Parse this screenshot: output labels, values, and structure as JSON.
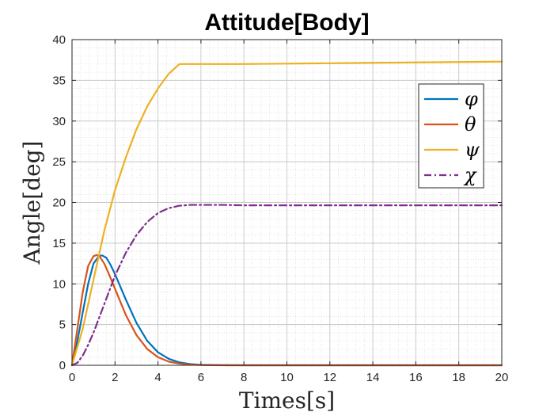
{
  "chart_data": {
    "type": "line",
    "title": "Attitude[Body]",
    "xlabel": "Times[s]",
    "ylabel": "Angle[deg]",
    "xlim": [
      0,
      20
    ],
    "ylim": [
      0,
      40
    ],
    "xticks": [
      0,
      2,
      4,
      6,
      8,
      10,
      12,
      14,
      16,
      18,
      20
    ],
    "yticks": [
      0,
      5,
      10,
      15,
      20,
      25,
      30,
      35,
      40
    ],
    "grid": true,
    "minor_grid": true,
    "legend_position": "top-right",
    "series": [
      {
        "name": "φ",
        "color": "#0072BD",
        "style": "solid",
        "x": [
          0,
          0.25,
          0.5,
          0.75,
          1.0,
          1.25,
          1.4,
          1.6,
          1.8,
          2.0,
          2.5,
          3.0,
          3.5,
          4.0,
          4.5,
          5.0,
          5.5,
          6.0,
          7.0,
          8.0,
          10.0,
          15.0,
          20.0
        ],
        "y": [
          0,
          3.0,
          6.5,
          10.0,
          12.5,
          13.4,
          13.5,
          13.2,
          12.3,
          11.2,
          8.1,
          5.2,
          3.0,
          1.6,
          0.8,
          0.35,
          0.15,
          0.05,
          0.01,
          0,
          0,
          0,
          0
        ]
      },
      {
        "name": "θ",
        "color": "#D95319",
        "style": "solid",
        "x": [
          0,
          0.25,
          0.5,
          0.75,
          1.0,
          1.15,
          1.3,
          1.5,
          1.75,
          2.0,
          2.5,
          3.0,
          3.5,
          4.0,
          4.5,
          5.0,
          5.5,
          6.0,
          7.0,
          8.0,
          10.0,
          15.0,
          20.0
        ],
        "y": [
          0,
          4.5,
          9.0,
          12.2,
          13.4,
          13.55,
          13.3,
          12.5,
          11.0,
          9.4,
          6.2,
          3.7,
          2.0,
          1.0,
          0.45,
          0.2,
          0.08,
          0.03,
          0,
          0,
          0,
          0,
          0
        ]
      },
      {
        "name": "ψ",
        "color": "#EDB120",
        "style": "solid",
        "x": [
          0,
          0.5,
          1.0,
          1.5,
          2.0,
          2.5,
          3.0,
          3.5,
          4.0,
          4.5,
          5.0,
          6.0,
          8.0,
          10.0,
          12.0,
          14.0,
          16.0,
          18.0,
          20.0
        ],
        "y": [
          0,
          4.5,
          10.5,
          16.5,
          21.5,
          25.5,
          29.0,
          31.8,
          34.0,
          35.8,
          37.0,
          37.0,
          37.0,
          37.05,
          37.1,
          37.15,
          37.2,
          37.25,
          37.3
        ]
      },
      {
        "name": "χ",
        "color": "#7E2F8E",
        "style": "dashdot",
        "x": [
          0,
          0.25,
          0.5,
          0.75,
          1.0,
          1.5,
          2.0,
          2.5,
          3.0,
          3.5,
          4.0,
          4.5,
          5.0,
          5.5,
          6.0,
          7.0,
          8.0,
          10.0,
          15.0,
          20.0
        ],
        "y": [
          0,
          0.3,
          1.2,
          2.5,
          4.0,
          7.5,
          11.0,
          13.8,
          16.0,
          17.6,
          18.7,
          19.3,
          19.6,
          19.7,
          19.7,
          19.7,
          19.65,
          19.65,
          19.65,
          19.65
        ]
      }
    ]
  }
}
